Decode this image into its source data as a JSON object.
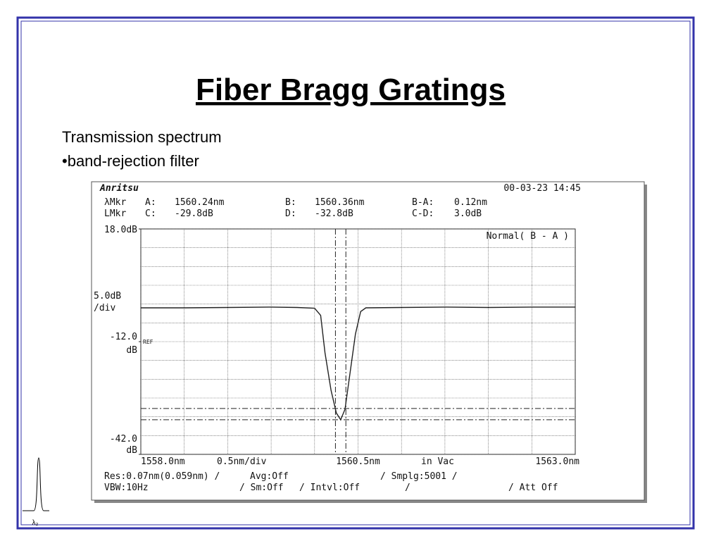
{
  "title": "Fiber Bragg Gratings",
  "bullets": [
    "Transmission spectrum",
    "•band-rejection filter"
  ],
  "icon_label": "λ₂",
  "chart_data": {
    "type": "line",
    "brand": "Anritsu",
    "timestamp": "00-03-23 14:45",
    "mode": "Normal( B - A )",
    "ref_label": "REF",
    "marker_rows": [
      "λMkr",
      "LMkr"
    ],
    "markers": {
      "names": [
        "A:",
        "B:",
        "C:",
        "D:"
      ],
      "values": [
        1560.24,
        1560.36,
        -29.8,
        -32.8
      ],
      "value_labels": [
        "1560.24nm",
        "1560.36nm",
        "-29.8dB",
        "-32.8dB"
      ],
      "axes": [
        "x",
        "x",
        "y",
        "y"
      ]
    },
    "diffs": {
      "names": [
        "B-A:",
        "C-D:"
      ],
      "labels": [
        "0.12nm",
        "3.0dB"
      ]
    },
    "y_scale_labels": [
      "5.0dB",
      "/div"
    ],
    "y_unit": "dB",
    "x_scale_label": "0.5nm/div",
    "x_medium": "in Vac",
    "settings": [
      [
        "Res:0.07nm(0.059nm)  /",
        "Avg:Off",
        "/  Smplg:5001  /"
      ],
      [
        "VBW:10Hz",
        "/ Sm:Off",
        "/ Intvl:Off",
        "/",
        "/ Att Off"
      ]
    ],
    "xlim": [
      1558.0,
      1563.0
    ],
    "ylim": [
      -42,
      18
    ],
    "xticks": [
      {
        "value": 1558.0,
        "label": "1558.0nm"
      },
      {
        "value": 1560.5,
        "label": "1560.5nm"
      },
      {
        "value": 1563.0,
        "label": "1563.0nm"
      }
    ],
    "yticks": [
      {
        "value": 18,
        "label": "18.0dB"
      },
      {
        "value": -12,
        "label": "-12.0"
      },
      {
        "value": -42,
        "label": "-42.0"
      }
    ],
    "xgrid": [
      1558.0,
      1558.5,
      1559.0,
      1559.5,
      1560.0,
      1560.5,
      1561.0,
      1561.5,
      1562.0,
      1562.5,
      1563.0
    ],
    "ygrid": [
      18,
      13,
      8,
      3,
      -2,
      -7,
      -12,
      -17,
      -22,
      -27,
      -32,
      -37,
      -42
    ],
    "color": "#222222",
    "x": [
      1558.0,
      1558.5,
      1559.0,
      1559.5,
      1559.8,
      1560.0,
      1560.07,
      1560.12,
      1560.19,
      1560.25,
      1560.3,
      1560.35,
      1560.41,
      1560.47,
      1560.53,
      1560.59,
      1561.0,
      1561.5,
      1562.0,
      1562.5,
      1563.0
    ],
    "values": [
      -3.0,
      -3.0,
      -2.9,
      -2.8,
      -2.9,
      -3.1,
      -5,
      -15,
      -25,
      -31,
      -32.8,
      -30,
      -20,
      -10,
      -4,
      -3.0,
      -2.9,
      -2.8,
      -2.9,
      -2.8,
      -2.8
    ]
  }
}
